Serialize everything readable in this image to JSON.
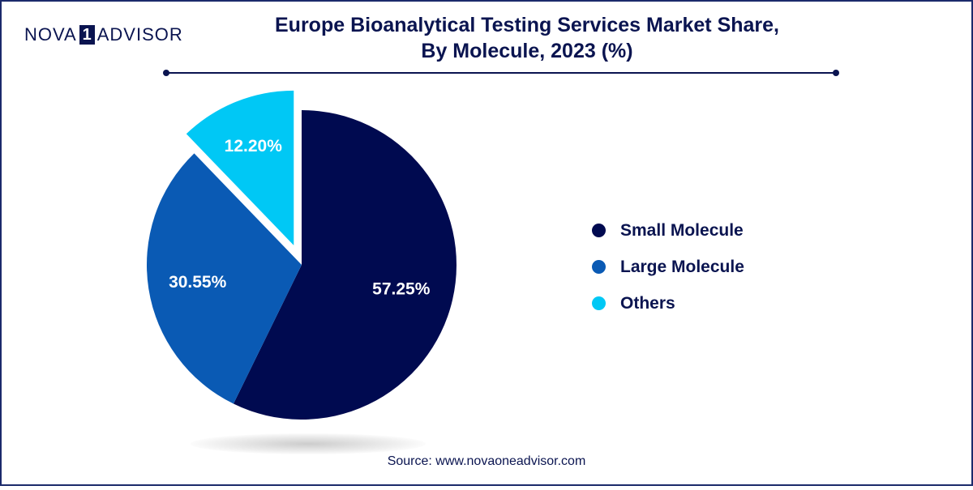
{
  "logo": {
    "left": "NOVA",
    "mark": "1",
    "right": "ADVISOR"
  },
  "title_line1": "Europe Bioanalytical Testing Services Market Share,",
  "title_line2": "By Molecule, 2023 (%)",
  "source": "Source: www.novaoneadvisor.com",
  "colors": {
    "small_molecule": "#000a50",
    "large_molecule": "#0a5ab4",
    "others": "#00c8f5",
    "text": "#0a1450"
  },
  "chart_data": {
    "type": "pie",
    "title": "Europe Bioanalytical Testing Services Market Share, By Molecule, 2023 (%)",
    "slices": [
      {
        "name": "Small Molecule",
        "value": 57.25,
        "label": "57.25%",
        "color": "#000a50"
      },
      {
        "name": "Large Molecule",
        "value": 30.55,
        "label": "30.55%",
        "color": "#0a5ab4"
      },
      {
        "name": "Others",
        "value": 12.2,
        "label": "12.20%",
        "color": "#00c8f5",
        "exploded": true
      }
    ],
    "legend": {
      "position": "right",
      "entries": [
        "Small Molecule",
        "Large Molecule",
        "Others"
      ]
    }
  }
}
